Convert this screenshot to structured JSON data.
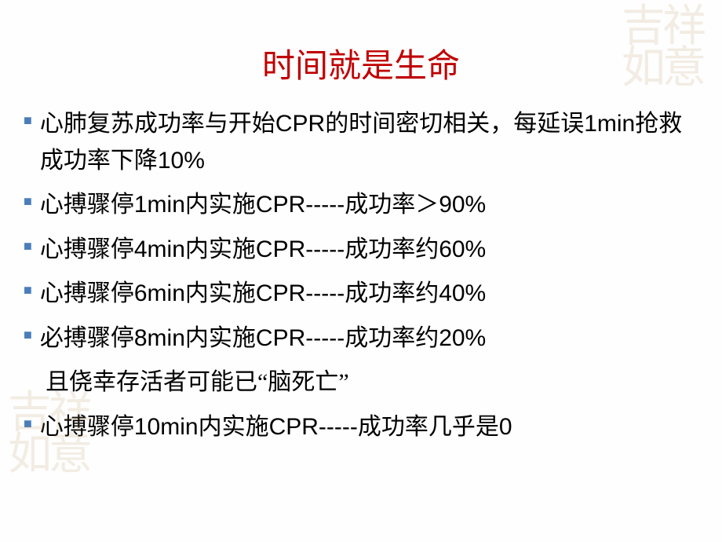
{
  "title": "时间就是生命",
  "bullets": [
    {
      "text": "心肺复苏成功率与开始CPR的时间密切相关，每延误1min抢救成功率下降10%"
    },
    {
      "text": "心搏骤停1min内实施CPR-----成功率＞90%"
    },
    {
      "text": "心搏骤停4min内实施CPR-----成功率约60%"
    },
    {
      "text": "心搏骤停6min内实施CPR-----成功率约40%"
    },
    {
      "text": "必搏骤停8min内实施CPR-----成功率约20%"
    }
  ],
  "sub_line": "且侥幸存活者可能已“脑死亡”",
  "last_bullet": "心搏骤停10min内实施CPR-----成功率几乎是0",
  "watermark_tr": "吉祥如意",
  "watermark_bl": "吉祥如意",
  "colors": {
    "title": "#c00000",
    "bullet": "#4a7ebb",
    "text": "#000000",
    "watermark": "#b08850"
  }
}
